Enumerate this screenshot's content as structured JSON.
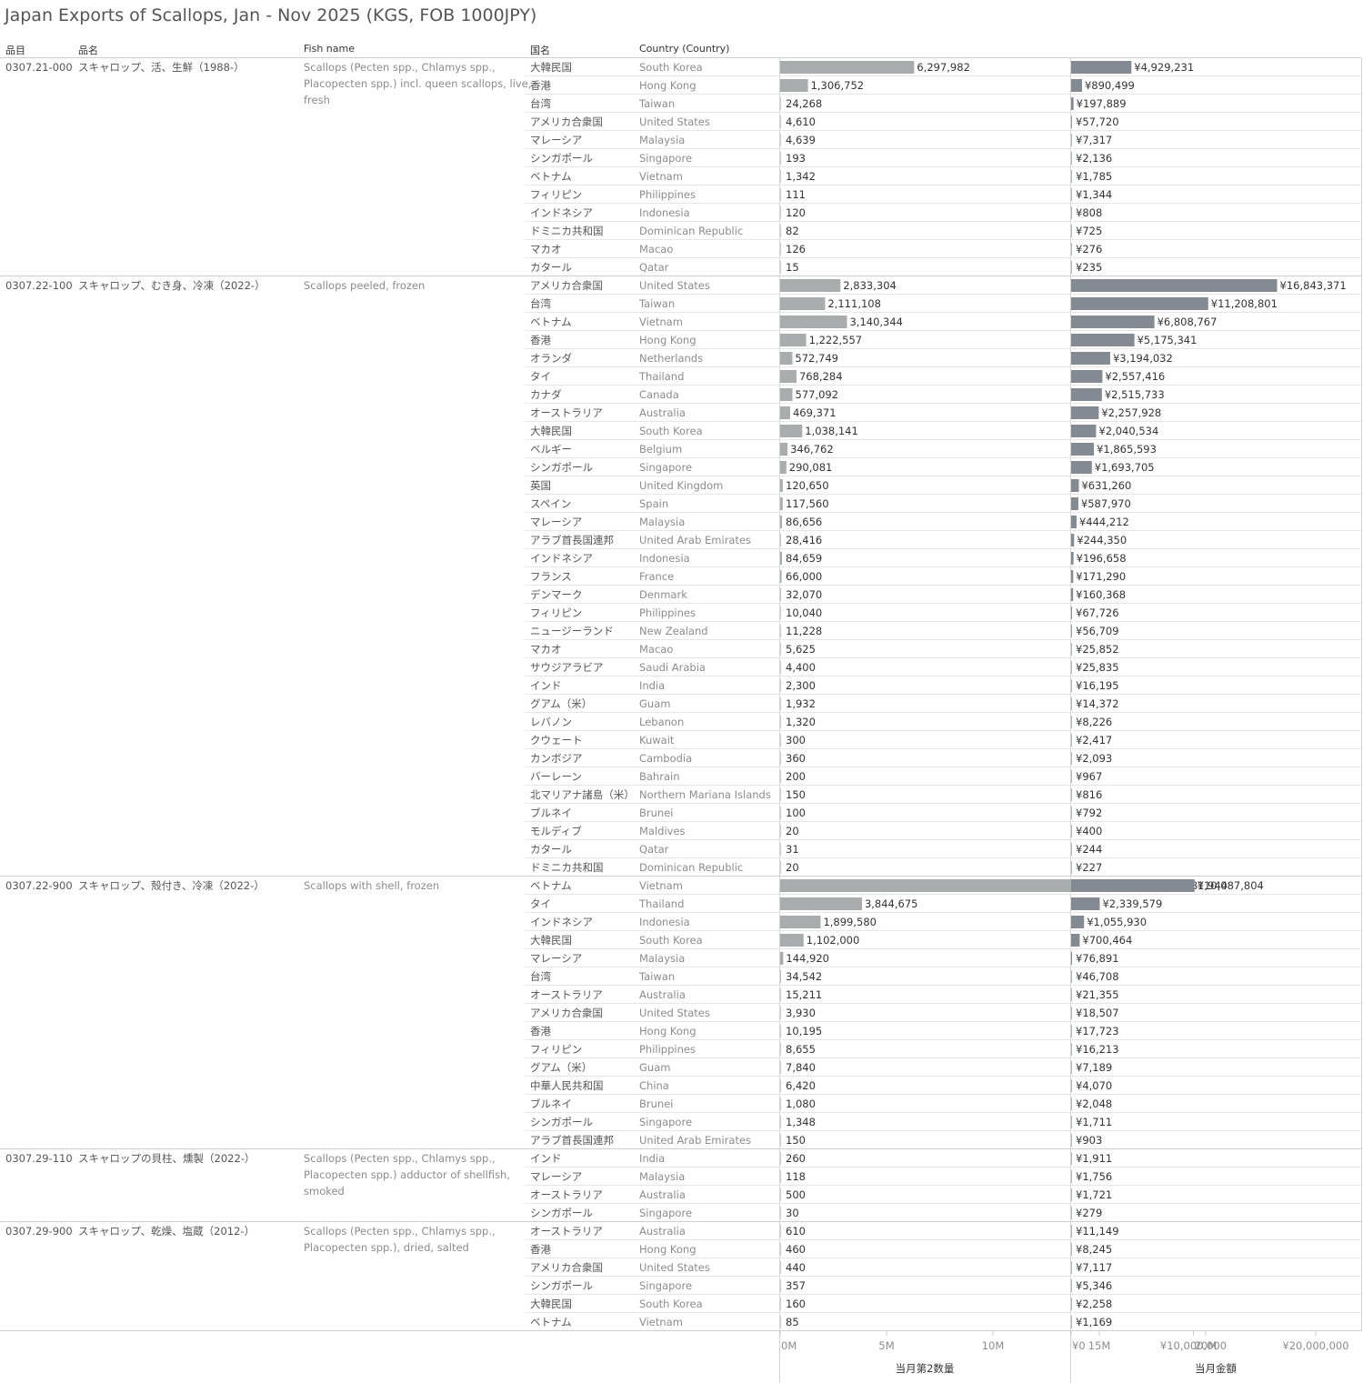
{
  "title": "Japan Exports of Scallops, Jan - Nov 2025 (KGS, FOB 1000JPY)",
  "headers": {
    "code": "品目",
    "jp_name": "品名",
    "fish_name": "Fish name",
    "country_jp": "国名",
    "country_en": "Country (Country)"
  },
  "axes": {
    "quantity": {
      "label": "当月第2数量",
      "ticks": [
        "0M",
        "5M",
        "10M",
        "15M",
        "20M"
      ],
      "tick_values": [
        0,
        5000000,
        10000000,
        15000000,
        20000000
      ],
      "range": [
        0,
        22000000
      ]
    },
    "value": {
      "label": "当月金額",
      "ticks": [
        "¥0",
        "¥10,000,000",
        "¥20,000,000"
      ],
      "tick_values": [
        0,
        10000000,
        20000000
      ],
      "range": [
        0,
        22500000
      ]
    }
  },
  "colors": {
    "quantity_bar": "#a9acad",
    "value_bar": "#838a91",
    "grid": "#e6e6e6",
    "text": "#555555",
    "muted": "#8c8c8c"
  },
  "chart_data": {
    "type": "bar",
    "orientation": "horizontal",
    "series": [
      {
        "name": "当月第2数量"
      },
      {
        "name": "当月金額"
      }
    ],
    "groups": [
      {
        "code": "0307.21-000",
        "jp": "スキャロップ、活、生鮮（1988-）",
        "en_lines": [
          "Scallops (Pecten spp., Chlamys spp.,",
          "Placopecten spp.) incl. queen scallops, live,",
          "fresh"
        ],
        "rows": [
          {
            "jp": "大韓民国",
            "en": "South Korea",
            "qty": 6297982,
            "qty_label": "6,297,982",
            "val": 4929231,
            "val_label": "¥4,929,231"
          },
          {
            "jp": "香港",
            "en": "Hong Kong",
            "qty": 1306752,
            "qty_label": "1,306,752",
            "val": 890499,
            "val_label": "¥890,499"
          },
          {
            "jp": "台湾",
            "en": "Taiwan",
            "qty": 24268,
            "qty_label": "24,268",
            "val": 197889,
            "val_label": "¥197,889"
          },
          {
            "jp": "アメリカ合衆国",
            "en": "United States",
            "qty": 4610,
            "qty_label": "4,610",
            "val": 57720,
            "val_label": "¥57,720"
          },
          {
            "jp": "マレーシア",
            "en": "Malaysia",
            "qty": 4639,
            "qty_label": "4,639",
            "val": 7317,
            "val_label": "¥7,317"
          },
          {
            "jp": "シンガポール",
            "en": "Singapore",
            "qty": 193,
            "qty_label": "193",
            "val": 2136,
            "val_label": "¥2,136"
          },
          {
            "jp": "ベトナム",
            "en": "Vietnam",
            "qty": 1342,
            "qty_label": "1,342",
            "val": 1785,
            "val_label": "¥1,785"
          },
          {
            "jp": "フィリピン",
            "en": "Philippines",
            "qty": 111,
            "qty_label": "111",
            "val": 1344,
            "val_label": "¥1,344"
          },
          {
            "jp": "インドネシア",
            "en": "Indonesia",
            "qty": 120,
            "qty_label": "120",
            "val": 808,
            "val_label": "¥808"
          },
          {
            "jp": "ドミニカ共和国",
            "en": "Dominican Republic",
            "qty": 82,
            "qty_label": "82",
            "val": 725,
            "val_label": "¥725"
          },
          {
            "jp": "マカオ",
            "en": "Macao",
            "qty": 126,
            "qty_label": "126",
            "val": 276,
            "val_label": "¥276"
          },
          {
            "jp": "カタール",
            "en": "Qatar",
            "qty": 15,
            "qty_label": "15",
            "val": 235,
            "val_label": "¥235"
          }
        ]
      },
      {
        "code": "0307.22-100",
        "jp": "スキャロップ、むき身、冷凍（2022-）",
        "en_lines": [
          "Scallops peeled, frozen"
        ],
        "rows": [
          {
            "jp": "アメリカ合衆国",
            "en": "United States",
            "qty": 2833304,
            "qty_label": "2,833,304",
            "val": 16843371,
            "val_label": "¥16,843,371"
          },
          {
            "jp": "台湾",
            "en": "Taiwan",
            "qty": 2111108,
            "qty_label": "2,111,108",
            "val": 11208801,
            "val_label": "¥11,208,801"
          },
          {
            "jp": "ベトナム",
            "en": "Vietnam",
            "qty": 3140344,
            "qty_label": "3,140,344",
            "val": 6808767,
            "val_label": "¥6,808,767"
          },
          {
            "jp": "香港",
            "en": "Hong Kong",
            "qty": 1222557,
            "qty_label": "1,222,557",
            "val": 5175341,
            "val_label": "¥5,175,341"
          },
          {
            "jp": "オランダ",
            "en": "Netherlands",
            "qty": 572749,
            "qty_label": "572,749",
            "val": 3194032,
            "val_label": "¥3,194,032"
          },
          {
            "jp": "タイ",
            "en": "Thailand",
            "qty": 768284,
            "qty_label": "768,284",
            "val": 2557416,
            "val_label": "¥2,557,416"
          },
          {
            "jp": "カナダ",
            "en": "Canada",
            "qty": 577092,
            "qty_label": "577,092",
            "val": 2515733,
            "val_label": "¥2,515,733"
          },
          {
            "jp": "オーストラリア",
            "en": "Australia",
            "qty": 469371,
            "qty_label": "469,371",
            "val": 2257928,
            "val_label": "¥2,257,928"
          },
          {
            "jp": "大韓民国",
            "en": "South Korea",
            "qty": 1038141,
            "qty_label": "1,038,141",
            "val": 2040534,
            "val_label": "¥2,040,534"
          },
          {
            "jp": "ベルギー",
            "en": "Belgium",
            "qty": 346762,
            "qty_label": "346,762",
            "val": 1865593,
            "val_label": "¥1,865,593"
          },
          {
            "jp": "シンガポール",
            "en": "Singapore",
            "qty": 290081,
            "qty_label": "290,081",
            "val": 1693705,
            "val_label": "¥1,693,705"
          },
          {
            "jp": "英国",
            "en": "United Kingdom",
            "qty": 120650,
            "qty_label": "120,650",
            "val": 631260,
            "val_label": "¥631,260"
          },
          {
            "jp": "スペイン",
            "en": "Spain",
            "qty": 117560,
            "qty_label": "117,560",
            "val": 587970,
            "val_label": "¥587,970"
          },
          {
            "jp": "マレーシア",
            "en": "Malaysia",
            "qty": 86656,
            "qty_label": "86,656",
            "val": 444212,
            "val_label": "¥444,212"
          },
          {
            "jp": "アラブ首長国連邦",
            "en": "United Arab Emirates",
            "qty": 28416,
            "qty_label": "28,416",
            "val": 244350,
            "val_label": "¥244,350"
          },
          {
            "jp": "インドネシア",
            "en": "Indonesia",
            "qty": 84659,
            "qty_label": "84,659",
            "val": 196658,
            "val_label": "¥196,658"
          },
          {
            "jp": "フランス",
            "en": "France",
            "qty": 66000,
            "qty_label": "66,000",
            "val": 171290,
            "val_label": "¥171,290"
          },
          {
            "jp": "デンマーク",
            "en": "Denmark",
            "qty": 32070,
            "qty_label": "32,070",
            "val": 160368,
            "val_label": "¥160,368"
          },
          {
            "jp": "フィリピン",
            "en": "Philippines",
            "qty": 10040,
            "qty_label": "10,040",
            "val": 67726,
            "val_label": "¥67,726"
          },
          {
            "jp": "ニュージーランド",
            "en": "New Zealand",
            "qty": 11228,
            "qty_label": "11,228",
            "val": 56709,
            "val_label": "¥56,709"
          },
          {
            "jp": "マカオ",
            "en": "Macao",
            "qty": 5625,
            "qty_label": "5,625",
            "val": 25852,
            "val_label": "¥25,852"
          },
          {
            "jp": "サウジアラビア",
            "en": "Saudi Arabia",
            "qty": 4400,
            "qty_label": "4,400",
            "val": 25835,
            "val_label": "¥25,835"
          },
          {
            "jp": "インド",
            "en": "India",
            "qty": 2300,
            "qty_label": "2,300",
            "val": 16195,
            "val_label": "¥16,195"
          },
          {
            "jp": "グアム（米）",
            "en": "Guam",
            "qty": 1932,
            "qty_label": "1,932",
            "val": 14372,
            "val_label": "¥14,372"
          },
          {
            "jp": "レバノン",
            "en": "Lebanon",
            "qty": 1320,
            "qty_label": "1,320",
            "val": 8226,
            "val_label": "¥8,226"
          },
          {
            "jp": "クウェート",
            "en": "Kuwait",
            "qty": 300,
            "qty_label": "300",
            "val": 2417,
            "val_label": "¥2,417"
          },
          {
            "jp": "カンボジア",
            "en": "Cambodia",
            "qty": 360,
            "qty_label": "360",
            "val": 2093,
            "val_label": "¥2,093"
          },
          {
            "jp": "バーレーン",
            "en": "Bahrain",
            "qty": 200,
            "qty_label": "200",
            "val": 967,
            "val_label": "¥967"
          },
          {
            "jp": "北マリアナ諸島（米）",
            "en": "Northern Mariana Islands",
            "qty": 150,
            "qty_label": "150",
            "val": 816,
            "val_label": "¥816"
          },
          {
            "jp": "ブルネイ",
            "en": "Brunei",
            "qty": 100,
            "qty_label": "100",
            "val": 792,
            "val_label": "¥792"
          },
          {
            "jp": "モルディブ",
            "en": "Maldives",
            "qty": 20,
            "qty_label": "20",
            "val": 400,
            "val_label": "¥400"
          },
          {
            "jp": "カタール",
            "en": "Qatar",
            "qty": 31,
            "qty_label": "31",
            "val": 244,
            "val_label": "¥244"
          },
          {
            "jp": "ドミニカ共和国",
            "en": "Dominican Republic",
            "qty": 20,
            "qty_label": "20",
            "val": 227,
            "val_label": "¥227"
          }
        ]
      },
      {
        "code": "0307.22-900",
        "jp": "スキャロップ、殻付き、冷凍（2022-）",
        "en_lines": [
          "Scallops with shell, frozen"
        ],
        "rows": [
          {
            "jp": "ベトナム",
            "en": "Vietnam",
            "qty": 18081944,
            "qty_label": "18,081,944",
            "val": 10087804,
            "val_label": "¥10,087,804"
          },
          {
            "jp": "タイ",
            "en": "Thailand",
            "qty": 3844675,
            "qty_label": "3,844,675",
            "val": 2339579,
            "val_label": "¥2,339,579"
          },
          {
            "jp": "インドネシア",
            "en": "Indonesia",
            "qty": 1899580,
            "qty_label": "1,899,580",
            "val": 1055930,
            "val_label": "¥1,055,930"
          },
          {
            "jp": "大韓民国",
            "en": "South Korea",
            "qty": 1102000,
            "qty_label": "1,102,000",
            "val": 700464,
            "val_label": "¥700,464"
          },
          {
            "jp": "マレーシア",
            "en": "Malaysia",
            "qty": 144920,
            "qty_label": "144,920",
            "val": 76891,
            "val_label": "¥76,891"
          },
          {
            "jp": "台湾",
            "en": "Taiwan",
            "qty": 34542,
            "qty_label": "34,542",
            "val": 46708,
            "val_label": "¥46,708"
          },
          {
            "jp": "オーストラリア",
            "en": "Australia",
            "qty": 15211,
            "qty_label": "15,211",
            "val": 21355,
            "val_label": "¥21,355"
          },
          {
            "jp": "アメリカ合衆国",
            "en": "United States",
            "qty": 3930,
            "qty_label": "3,930",
            "val": 18507,
            "val_label": "¥18,507"
          },
          {
            "jp": "香港",
            "en": "Hong Kong",
            "qty": 10195,
            "qty_label": "10,195",
            "val": 17723,
            "val_label": "¥17,723"
          },
          {
            "jp": "フィリピン",
            "en": "Philippines",
            "qty": 8655,
            "qty_label": "8,655",
            "val": 16213,
            "val_label": "¥16,213"
          },
          {
            "jp": "グアム（米）",
            "en": "Guam",
            "qty": 7840,
            "qty_label": "7,840",
            "val": 7189,
            "val_label": "¥7,189"
          },
          {
            "jp": "中華人民共和国",
            "en": "China",
            "qty": 6420,
            "qty_label": "6,420",
            "val": 4070,
            "val_label": "¥4,070"
          },
          {
            "jp": "ブルネイ",
            "en": "Brunei",
            "qty": 1080,
            "qty_label": "1,080",
            "val": 2048,
            "val_label": "¥2,048"
          },
          {
            "jp": "シンガポール",
            "en": "Singapore",
            "qty": 1348,
            "qty_label": "1,348",
            "val": 1711,
            "val_label": "¥1,711"
          },
          {
            "jp": "アラブ首長国連邦",
            "en": "United Arab Emirates",
            "qty": 150,
            "qty_label": "150",
            "val": 903,
            "val_label": "¥903"
          }
        ]
      },
      {
        "code": "0307.29-110",
        "jp": "スキャロップの貝柱、燻製（2022-）",
        "en_lines": [
          "Scallops (Pecten spp., Chlamys spp.,",
          "Placopecten spp.) adductor of shellfish,",
          "smoked"
        ],
        "rows": [
          {
            "jp": "インド",
            "en": "India",
            "qty": 260,
            "qty_label": "260",
            "val": 1911,
            "val_label": "¥1,911"
          },
          {
            "jp": "マレーシア",
            "en": "Malaysia",
            "qty": 118,
            "qty_label": "118",
            "val": 1756,
            "val_label": "¥1,756"
          },
          {
            "jp": "オーストラリア",
            "en": "Australia",
            "qty": 500,
            "qty_label": "500",
            "val": 1721,
            "val_label": "¥1,721"
          },
          {
            "jp": "シンガポール",
            "en": "Singapore",
            "qty": 30,
            "qty_label": "30",
            "val": 279,
            "val_label": "¥279"
          }
        ]
      },
      {
        "code": "0307.29-900",
        "jp": "スキャロップ、乾燥、塩蔵（2012-）",
        "en_lines": [
          "Scallops (Pecten spp., Chlamys spp.,",
          "Placopecten spp.), dried, salted"
        ],
        "rows": [
          {
            "jp": "オーストラリア",
            "en": "Australia",
            "qty": 610,
            "qty_label": "610",
            "val": 11149,
            "val_label": "¥11,149"
          },
          {
            "jp": "香港",
            "en": "Hong Kong",
            "qty": 460,
            "qty_label": "460",
            "val": 8245,
            "val_label": "¥8,245"
          },
          {
            "jp": "アメリカ合衆国",
            "en": "United States",
            "qty": 440,
            "qty_label": "440",
            "val": 7117,
            "val_label": "¥7,117"
          },
          {
            "jp": "シンガポール",
            "en": "Singapore",
            "qty": 357,
            "qty_label": "357",
            "val": 5346,
            "val_label": "¥5,346"
          },
          {
            "jp": "大韓民国",
            "en": "South Korea",
            "qty": 160,
            "qty_label": "160",
            "val": 2258,
            "val_label": "¥2,258"
          },
          {
            "jp": "ベトナム",
            "en": "Vietnam",
            "qty": 85,
            "qty_label": "85",
            "val": 1169,
            "val_label": "¥1,169"
          }
        ]
      }
    ]
  }
}
